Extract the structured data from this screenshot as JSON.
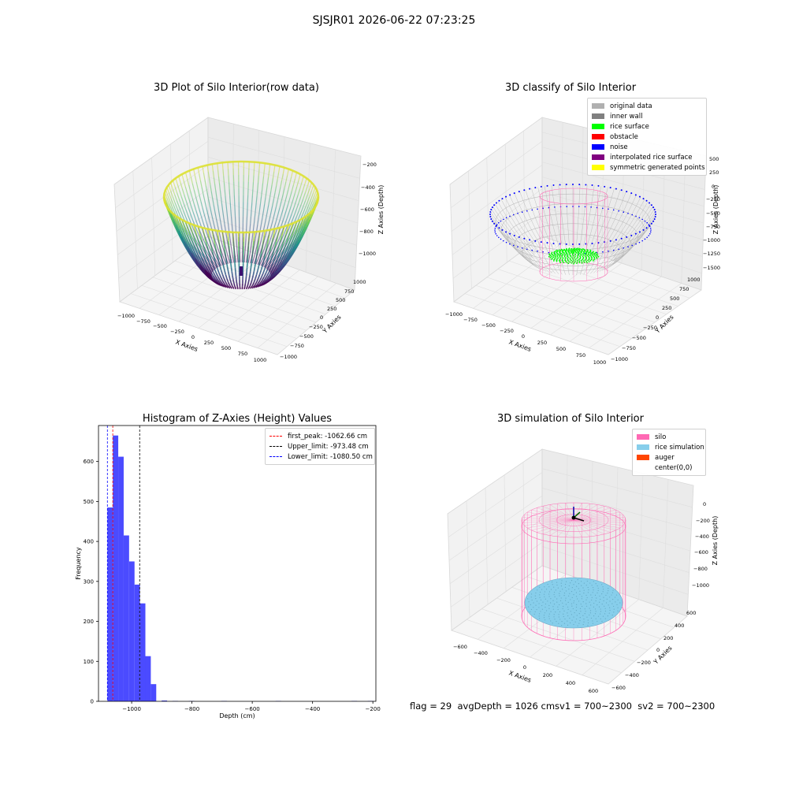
{
  "figure": {
    "suptitle": "SJSJR01 2026-06-22 07:23:25",
    "footer": "flag = 29  avgDepth = 1026 cmsv1 = 700~2300  sv2 = 700~2300"
  },
  "colors": {
    "rice_surface": "#00ff00",
    "obstacle": "#ff0000",
    "noise": "#0000ff",
    "interpolated": "#800080",
    "symmetric": "#ffff00",
    "original": "#b0b0b0",
    "inner_wall": "#808080",
    "silo": "#ff69b4",
    "rice_sim": "#87ceeb",
    "auger": "#ff4500",
    "hist_bar": "#4b4bff"
  },
  "chart_data": [
    {
      "type": "scatter",
      "subtype": "3d",
      "title": "3D Plot of Silo Interior(row data)",
      "xlabel": "X Axies",
      "ylabel": "Y Axies",
      "zlabel": "Z Axies (Depth)",
      "x_ticks": [
        "−1000",
        "−750",
        "−500",
        "−250",
        "0",
        "250",
        "500",
        "750",
        "1000"
      ],
      "y_ticks": [
        "1000",
        "750",
        "500",
        "250",
        "0",
        "−250",
        "−500",
        "−750",
        "−1000"
      ],
      "z_ticks": [
        "−200",
        "−400",
        "−600",
        "−800",
        "−1000"
      ],
      "colormap": "viridis",
      "xlim": [
        -1000,
        1000
      ],
      "ylim": [
        -1000,
        1000
      ],
      "zlim": [
        -1100,
        -200
      ]
    },
    {
      "type": "scatter",
      "subtype": "3d",
      "title": "3D classify of Silo Interior",
      "xlabel": "X Axies",
      "ylabel": "Y Axies",
      "zlabel": "Z Axies (Depth)",
      "x_ticks": [
        "−1000",
        "−750",
        "−500",
        "−250",
        "0",
        "250",
        "500",
        "750",
        "1000"
      ],
      "y_ticks": [
        "1000",
        "750",
        "500",
        "250",
        "0",
        "−250",
        "−500",
        "−750",
        "−1000"
      ],
      "z_ticks": [
        "500",
        "250",
        "0",
        "−250",
        "−500",
        "−750",
        "−1000",
        "−1250",
        "−1500"
      ],
      "legend": [
        {
          "name": "original data",
          "color": "#b0b0b0"
        },
        {
          "name": "inner wall",
          "color": "#808080"
        },
        {
          "name": "rice surface",
          "color": "#00ff00"
        },
        {
          "name": "obstacle",
          "color": "#ff0000"
        },
        {
          "name": "noise",
          "color": "#0000ff"
        },
        {
          "name": "interpolated rice surface",
          "color": "#800080"
        },
        {
          "name": "symmetric generated points",
          "color": "#ffff00"
        }
      ],
      "legend_position": "top-right"
    },
    {
      "type": "bar",
      "subtype": "histogram",
      "title": "Histogram of Z-Axies (Height) Values",
      "xlabel": "Depth (cm)",
      "ylabel": "Frequency",
      "xlim": [
        -1110,
        -190
      ],
      "ylim": [
        0,
        690
      ],
      "x_ticks": [
        -1000,
        -800,
        -600,
        -400,
        -200
      ],
      "x_tick_labels": [
        "−1000",
        "−800",
        "−600",
        "−400",
        "−200"
      ],
      "y_ticks": [
        0,
        100,
        200,
        300,
        400,
        500,
        600
      ],
      "bin_width": 18,
      "bins": [
        {
          "x0": -1080.5,
          "count": 485
        },
        {
          "x0": -1062.5,
          "count": 665
        },
        {
          "x0": -1044.5,
          "count": 612
        },
        {
          "x0": -1026.5,
          "count": 415
        },
        {
          "x0": -1008.5,
          "count": 350
        },
        {
          "x0": -990.5,
          "count": 292
        },
        {
          "x0": -972.5,
          "count": 245
        },
        {
          "x0": -954.5,
          "count": 113
        },
        {
          "x0": -936.5,
          "count": 43
        },
        {
          "x0": -900.5,
          "count": 2
        },
        {
          "x0": -864.5,
          "count": 1
        },
        {
          "x0": -810.5,
          "count": 1
        },
        {
          "x0": -702.5,
          "count": 1
        },
        {
          "x0": -522.5,
          "count": 1
        },
        {
          "x0": -270.5,
          "count": 1
        },
        {
          "x0": -216.5,
          "count": 1
        }
      ],
      "vlines": [
        {
          "name": "first_peak: -1062.66 cm",
          "x": -1062.66,
          "color": "#ff0000"
        },
        {
          "name": "Upper_limit: -973.48 cm",
          "x": -973.48,
          "color": "#000000"
        },
        {
          "name": "Lower_limit: -1080.50 cm",
          "x": -1080.5,
          "color": "#0000ff"
        }
      ],
      "legend_position": "top-right"
    },
    {
      "type": "scatter",
      "subtype": "3d",
      "title": "3D simulation of Silo Interior",
      "xlabel": "X Axies",
      "ylabel": "Y Axies",
      "zlabel": "Z Axies (Depth)",
      "x_ticks": [
        "−600",
        "−400",
        "−200",
        "0",
        "200",
        "400",
        "600"
      ],
      "y_ticks": [
        "600",
        "400",
        "200",
        "0",
        "−200",
        "−400",
        "−600"
      ],
      "z_ticks": [
        "0",
        "−200",
        "−400",
        "−600",
        "−800",
        "−1000"
      ],
      "legend": [
        {
          "name": "silo",
          "color": "#ff69b4"
        },
        {
          "name": "rice simulation",
          "color": "#87ceeb"
        },
        {
          "name": "auger",
          "color": "#ff4500"
        },
        {
          "name": "center(0,0)",
          "color": "#ffffff"
        }
      ],
      "legend_position": "top-right"
    }
  ]
}
